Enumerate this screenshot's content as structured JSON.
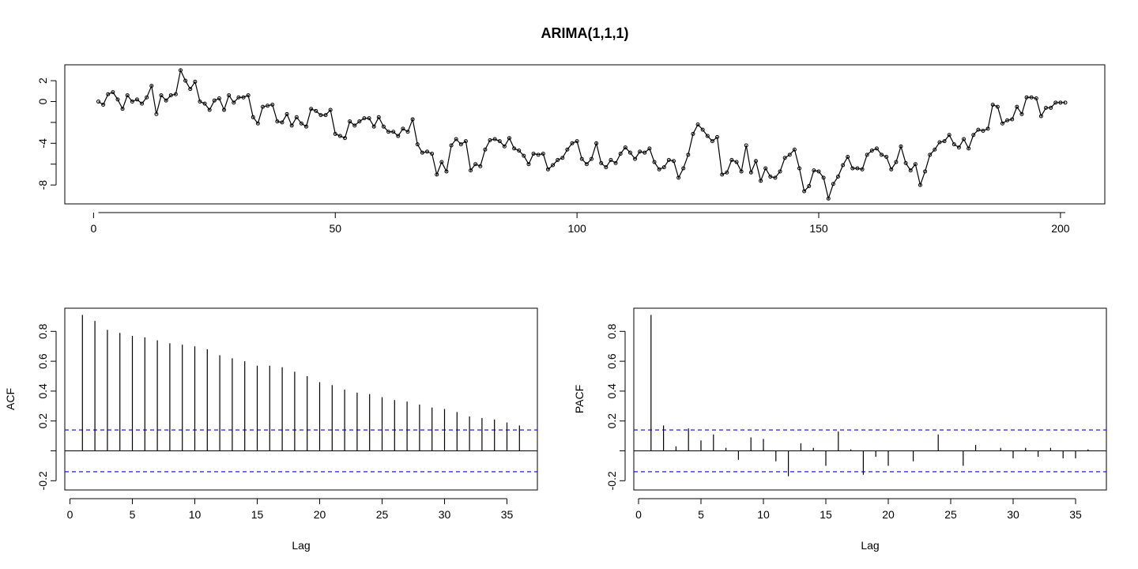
{
  "title": "ARIMA(1,1,1)",
  "chart_data": [
    {
      "type": "line",
      "title": "ARIMA(1,1,1)",
      "markers": "open-circles",
      "xlim": [
        1,
        201
      ],
      "ylim": [
        -9.3,
        3.0
      ],
      "xticks": [
        0,
        50,
        100,
        150,
        200
      ],
      "yticks": [
        2,
        0,
        -4,
        -8
      ],
      "yticks_minor": [
        -2,
        -6
      ],
      "x_start": 1,
      "y": [
        0.0,
        -0.3,
        0.7,
        0.9,
        0.2,
        -0.7,
        0.6,
        0.0,
        0.2,
        -0.2,
        0.4,
        1.5,
        -1.2,
        0.6,
        0.1,
        0.6,
        0.7,
        3.0,
        2.0,
        1.2,
        1.9,
        0.0,
        -0.2,
        -0.8,
        0.1,
        0.3,
        -0.8,
        0.6,
        -0.1,
        0.4,
        0.4,
        0.6,
        -1.5,
        -2.1,
        -0.5,
        -0.4,
        -0.3,
        -1.9,
        -2.0,
        -1.2,
        -2.3,
        -1.5,
        -2.1,
        -2.4,
        -0.7,
        -0.9,
        -1.3,
        -1.3,
        -0.8,
        -3.1,
        -3.3,
        -3.5,
        -1.9,
        -2.3,
        -1.9,
        -1.6,
        -1.6,
        -2.4,
        -1.5,
        -2.4,
        -2.9,
        -2.9,
        -3.3,
        -2.6,
        -2.9,
        -1.7,
        -4.1,
        -4.9,
        -4.8,
        -5.0,
        -7.0,
        -5.8,
        -6.7,
        -4.2,
        -3.6,
        -4.1,
        -3.8,
        -6.6,
        -6.0,
        -6.2,
        -4.6,
        -3.7,
        -3.6,
        -3.8,
        -4.3,
        -3.5,
        -4.5,
        -4.7,
        -5.2,
        -6.0,
        -5.0,
        -5.1,
        -5.0,
        -6.5,
        -6.1,
        -5.6,
        -5.4,
        -4.6,
        -4.0,
        -3.8,
        -5.5,
        -6.0,
        -5.5,
        -4.0,
        -5.9,
        -6.3,
        -5.6,
        -5.9,
        -5.0,
        -4.4,
        -4.9,
        -5.5,
        -4.8,
        -4.9,
        -4.5,
        -5.8,
        -6.5,
        -6.3,
        -5.6,
        -5.7,
        -7.3,
        -6.4,
        -5.1,
        -3.1,
        -2.2,
        -2.7,
        -3.3,
        -3.8,
        -3.4,
        -7.0,
        -6.8,
        -5.6,
        -5.8,
        -6.7,
        -4.2,
        -6.8,
        -5.7,
        -7.6,
        -6.4,
        -7.2,
        -7.3,
        -6.7,
        -5.4,
        -5.1,
        -4.6,
        -6.4,
        -8.6,
        -8.1,
        -6.6,
        -6.7,
        -7.3,
        -9.3,
        -7.9,
        -7.2,
        -6.1,
        -5.3,
        -6.4,
        -6.4,
        -6.5,
        -5.1,
        -4.7,
        -4.5,
        -5.1,
        -5.3,
        -6.5,
        -5.8,
        -4.3,
        -5.9,
        -6.6,
        -6.0,
        -8.0,
        -6.7,
        -5.1,
        -4.6,
        -3.9,
        -3.8,
        -3.2,
        -4.1,
        -4.4,
        -3.6,
        -4.5,
        -3.2,
        -2.7,
        -2.8,
        -2.6,
        -0.3,
        -0.5,
        -2.1,
        -1.8,
        -1.7,
        -0.5,
        -1.2,
        0.4,
        0.4,
        0.3,
        -1.4,
        -0.6,
        -0.6,
        -0.1,
        -0.1,
        -0.1
      ]
    },
    {
      "type": "bar",
      "style": "spikes",
      "xlabel": "Lag",
      "ylabel": "ACF",
      "xlim": [
        0,
        36
      ],
      "ylim": [
        -0.28,
        0.92
      ],
      "xticks": [
        0,
        5,
        10,
        15,
        20,
        25,
        30,
        35
      ],
      "yticks": [
        -0.2,
        0.2,
        0.4,
        0.6,
        0.8
      ],
      "yticks_minor": [
        0.0
      ],
      "confidence_band": 0.14,
      "band_color": "#0000ff",
      "lags": [
        1,
        2,
        3,
        4,
        5,
        6,
        7,
        8,
        9,
        10,
        11,
        12,
        13,
        14,
        15,
        16,
        17,
        18,
        19,
        20,
        21,
        22,
        23,
        24,
        25,
        26,
        27,
        28,
        29,
        30,
        31,
        32,
        33,
        34,
        35,
        36
      ],
      "values": [
        0.91,
        0.87,
        0.81,
        0.79,
        0.77,
        0.76,
        0.74,
        0.72,
        0.71,
        0.7,
        0.68,
        0.64,
        0.62,
        0.6,
        0.57,
        0.57,
        0.56,
        0.53,
        0.5,
        0.46,
        0.44,
        0.41,
        0.39,
        0.38,
        0.36,
        0.34,
        0.33,
        0.31,
        0.29,
        0.28,
        0.26,
        0.23,
        0.22,
        0.21,
        0.19,
        0.17
      ]
    },
    {
      "type": "bar",
      "style": "spikes",
      "xlabel": "Lag",
      "ylabel": "PACF",
      "xlim": [
        0,
        36
      ],
      "ylim": [
        -0.28,
        0.92
      ],
      "xticks": [
        0,
        5,
        10,
        15,
        20,
        25,
        30,
        35
      ],
      "yticks": [
        -0.2,
        0.2,
        0.4,
        0.6,
        0.8
      ],
      "yticks_minor": [
        0.0
      ],
      "confidence_band": 0.14,
      "band_color": "#0000ff",
      "lags": [
        1,
        2,
        3,
        4,
        5,
        6,
        7,
        8,
        9,
        10,
        11,
        12,
        13,
        14,
        15,
        16,
        17,
        18,
        19,
        20,
        21,
        22,
        23,
        24,
        25,
        26,
        27,
        28,
        29,
        30,
        31,
        32,
        33,
        34,
        35,
        36
      ],
      "values": [
        0.91,
        0.17,
        0.03,
        0.15,
        0.07,
        0.11,
        0.02,
        -0.06,
        0.09,
        0.08,
        -0.07,
        -0.17,
        0.05,
        0.02,
        -0.1,
        0.13,
        0.01,
        -0.16,
        -0.04,
        -0.1,
        0.0,
        -0.07,
        0.0,
        0.11,
        0.0,
        -0.1,
        0.04,
        0.0,
        0.02,
        -0.05,
        0.02,
        -0.04,
        0.02,
        -0.05,
        -0.05,
        0.01
      ]
    }
  ]
}
